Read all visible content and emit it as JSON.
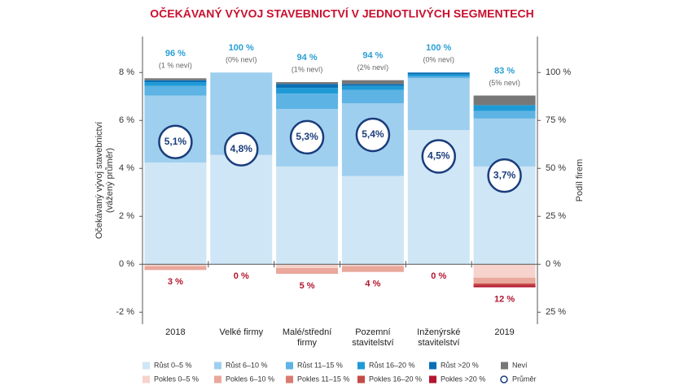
{
  "chart_data": {
    "type": "bar",
    "title": "OČEKÁVANÝ VÝVOJ STAVEBNICTVÍ V JEDNOTLIVÝCH SEGMENTECH",
    "y_label": [
      "Očekávaný vývoj stavebnictví",
      "(vážený průměr)"
    ],
    "y2_label": "Podíl firem",
    "categories": [
      "2018",
      "Velké firmy",
      "Malé/střední firmy",
      "Pozemní stavitelství",
      "Inženýrské stavitelství",
      "2019"
    ],
    "ylim": [
      -2.5,
      9.5
    ],
    "yticks": [
      {
        "value": -2,
        "label": "-2 %"
      },
      {
        "value": 0,
        "label": "0 %"
      },
      {
        "value": 2,
        "label": "2 %"
      },
      {
        "value": 4,
        "label": "4 %"
      },
      {
        "value": 6,
        "label": "6 %"
      },
      {
        "value": 8,
        "label": "8 %"
      }
    ],
    "y2lim": [
      -31.25,
      118.75
    ],
    "y2ticks": [
      {
        "value": -25,
        "label": "25 %"
      },
      {
        "value": 0,
        "label": "0 %"
      },
      {
        "value": 25,
        "label": "25 %"
      },
      {
        "value": 50,
        "label": "50 %"
      },
      {
        "value": 75,
        "label": "75 %"
      },
      {
        "value": 100,
        "label": "100 %"
      }
    ],
    "stacked": true,
    "series": [
      {
        "name": "Růst 0–5 %",
        "color": "#cfe6f6",
        "axis": "y2",
        "values": [
          53,
          57,
          51,
          46,
          70,
          51
        ]
      },
      {
        "name": "Růst 6–10 %",
        "color": "#9fcfee",
        "axis": "y2",
        "values": [
          35,
          43,
          30,
          38,
          27,
          25
        ]
      },
      {
        "name": "Růst 11–15 %",
        "color": "#5db3e3",
        "axis": "y2",
        "values": [
          5,
          0,
          8,
          7,
          1,
          4
        ]
      },
      {
        "name": "Růst 16–20 %",
        "color": "#1e9ad6",
        "axis": "y2",
        "values": [
          2,
          0,
          3,
          2,
          1,
          3
        ]
      },
      {
        "name": "Růst >20 %",
        "color": "#0a6fb4",
        "axis": "y2",
        "values": [
          1,
          0,
          2,
          1,
          1,
          0
        ]
      },
      {
        "name": "Neví",
        "color": "#777777",
        "axis": "y2",
        "values": [
          1,
          0,
          1,
          2,
          0,
          5
        ]
      },
      {
        "name": "Pokles 0–5 %",
        "color": "#f6d3cc",
        "axis": "y2",
        "values": [
          -1,
          0,
          -2,
          -1,
          0,
          -7
        ]
      },
      {
        "name": "Pokles 6–10 %",
        "color": "#eaa79b",
        "axis": "y2",
        "values": [
          -2,
          0,
          -3,
          -3,
          0,
          -3
        ]
      },
      {
        "name": "Pokles 11–15 %",
        "color": "#d97b6f",
        "axis": "y2",
        "values": [
          0,
          0,
          0,
          0,
          0,
          0
        ]
      },
      {
        "name": "Pokles 16–20 %",
        "color": "#c64a47",
        "axis": "y2",
        "values": [
          0,
          0,
          0,
          0,
          0,
          -1
        ]
      },
      {
        "name": "Pokles >20 %",
        "color": "#b3152e",
        "axis": "y2",
        "values": [
          0,
          0,
          0,
          0,
          0,
          -1
        ]
      },
      {
        "name": "Průměr",
        "color": "#1a3d7c",
        "axis": "y",
        "values": [
          5.1,
          4.8,
          5.3,
          5.4,
          4.5,
          3.7
        ],
        "value_labels": [
          "5,1%",
          "4,8%",
          "5,3%",
          "5,4%",
          "4,5%",
          "3,7%"
        ]
      }
    ],
    "growth_labels": [
      "96 %",
      "100 %",
      "94 %",
      "94 %",
      "100 %",
      "83 %"
    ],
    "unknown_labels": [
      "(1 % neví)",
      "(0% neví)",
      "(1% neví)",
      "(2% neví)",
      "(0% neví)",
      "(5% neví)"
    ],
    "decline_labels": [
      "3 %",
      "0 %",
      "5 %",
      "4 %",
      "0 %",
      "12 %"
    ]
  }
}
